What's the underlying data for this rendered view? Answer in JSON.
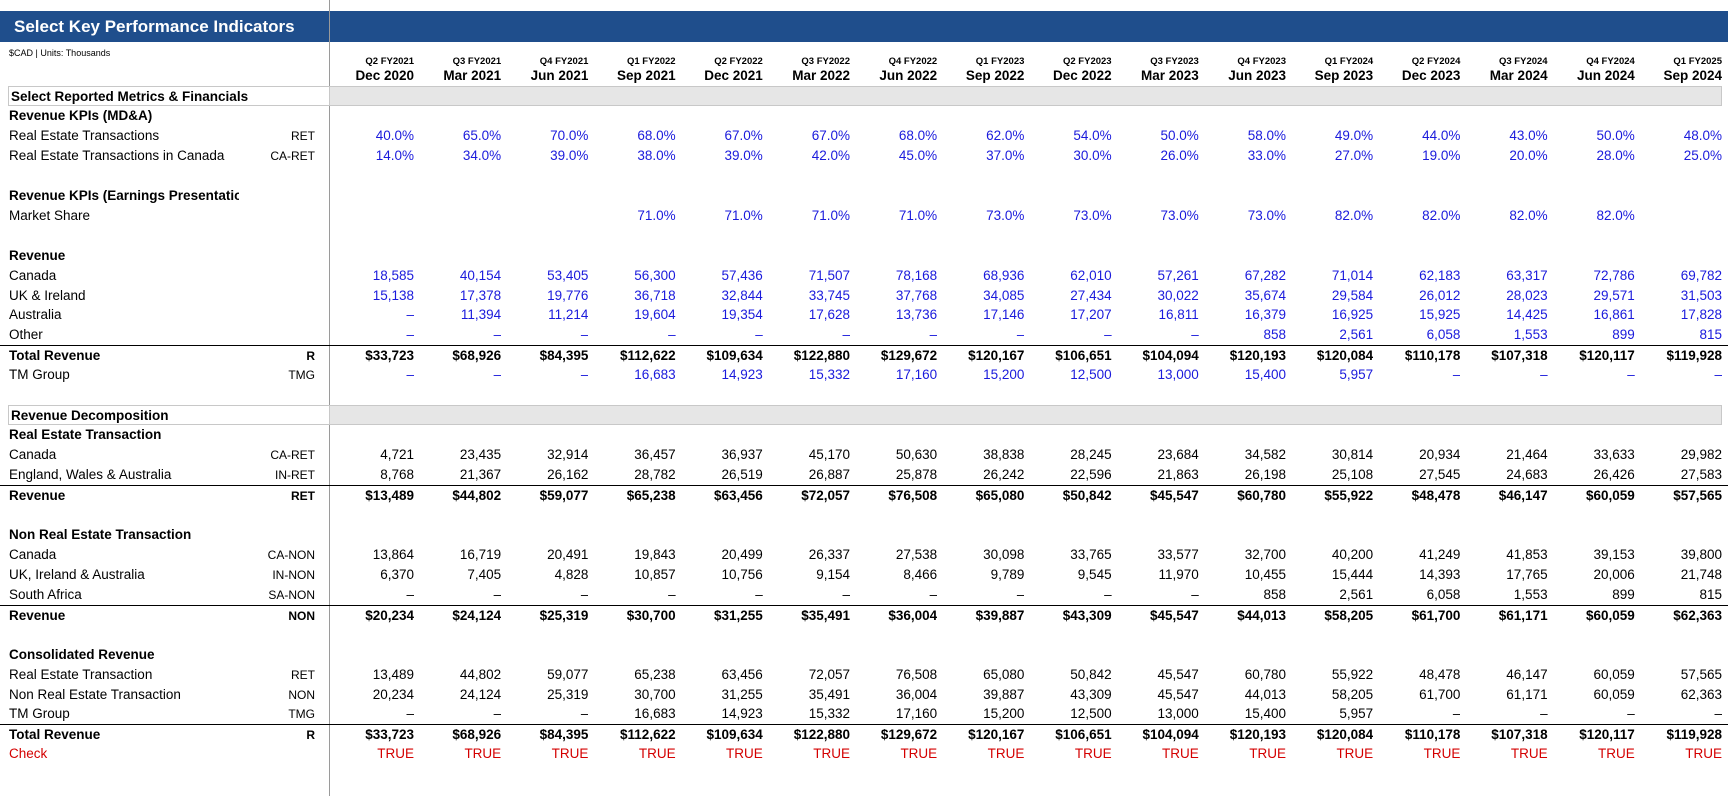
{
  "title": "Select Key Performance Indicators",
  "units": "$CAD | Units: Thousands",
  "colors": {
    "header_bg": "#1f4e8c",
    "input_blue": "#1a1adc",
    "check_red": "#d40000",
    "section_bg": "#e6e6e6"
  },
  "fiscal_quarters": [
    "Q2 FY2021",
    "Q3 FY2021",
    "Q4 FY2021",
    "Q1 FY2022",
    "Q2 FY2022",
    "Q3 FY2022",
    "Q4 FY2022",
    "Q1 FY2023",
    "Q2 FY2023",
    "Q3 FY2023",
    "Q4 FY2023",
    "Q1 FY2024",
    "Q2 FY2024",
    "Q3 FY2024",
    "Q4 FY2024",
    "Q1 FY2025"
  ],
  "period_dates": [
    "Dec 2020",
    "Mar 2021",
    "Jun 2021",
    "Sep 2021",
    "Dec 2021",
    "Mar 2022",
    "Jun 2022",
    "Sep 2022",
    "Dec 2022",
    "Mar 2023",
    "Jun 2023",
    "Sep 2023",
    "Dec 2023",
    "Mar 2024",
    "Jun 2024",
    "Sep 2024"
  ],
  "rows": [
    {
      "type": "section",
      "label": "Select Reported Metrics & Financials"
    },
    {
      "type": "heading",
      "label": "Revenue KPIs (MD&A)"
    },
    {
      "type": "data",
      "style": "blue",
      "label": "Real Estate Transactions",
      "code": "RET",
      "values": [
        "40.0%",
        "65.0%",
        "70.0%",
        "68.0%",
        "67.0%",
        "67.0%",
        "68.0%",
        "62.0%",
        "54.0%",
        "50.0%",
        "58.0%",
        "49.0%",
        "44.0%",
        "43.0%",
        "50.0%",
        "48.0%"
      ]
    },
    {
      "type": "data",
      "style": "blue",
      "label": "Real Estate Transactions in Canada",
      "code": "CA-RET",
      "values": [
        "14.0%",
        "34.0%",
        "39.0%",
        "38.0%",
        "39.0%",
        "42.0%",
        "45.0%",
        "37.0%",
        "30.0%",
        "26.0%",
        "33.0%",
        "27.0%",
        "19.0%",
        "20.0%",
        "28.0%",
        "25.0%"
      ]
    },
    {
      "type": "blank"
    },
    {
      "type": "heading",
      "label": "Revenue KPIs (Earnings Presentation)"
    },
    {
      "type": "data",
      "style": "blue",
      "label": "Market Share",
      "code": "",
      "values": [
        "",
        "",
        "",
        "71.0%",
        "71.0%",
        "71.0%",
        "71.0%",
        "73.0%",
        "73.0%",
        "73.0%",
        "73.0%",
        "82.0%",
        "82.0%",
        "82.0%",
        "82.0%",
        ""
      ]
    },
    {
      "type": "blank"
    },
    {
      "type": "heading",
      "label": "Revenue"
    },
    {
      "type": "data",
      "style": "blue",
      "label": "Canada",
      "code": "",
      "values": [
        "18,585",
        "40,154",
        "53,405",
        "56,300",
        "57,436",
        "71,507",
        "78,168",
        "68,936",
        "62,010",
        "57,261",
        "67,282",
        "71,014",
        "62,183",
        "63,317",
        "72,786",
        "69,782"
      ]
    },
    {
      "type": "data",
      "style": "blue",
      "label": "UK & Ireland",
      "code": "",
      "values": [
        "15,138",
        "17,378",
        "19,776",
        "36,718",
        "32,844",
        "33,745",
        "37,768",
        "34,085",
        "27,434",
        "30,022",
        "35,674",
        "29,584",
        "26,012",
        "28,023",
        "29,571",
        "31,503"
      ]
    },
    {
      "type": "data",
      "style": "blue",
      "label": "Australia",
      "code": "",
      "values": [
        "–",
        "11,394",
        "11,214",
        "19,604",
        "19,354",
        "17,628",
        "13,736",
        "17,146",
        "17,207",
        "16,811",
        "16,379",
        "16,925",
        "15,925",
        "14,425",
        "16,861",
        "17,828"
      ]
    },
    {
      "type": "data",
      "style": "blue",
      "label": "Other",
      "code": "",
      "values": [
        "–",
        "–",
        "–",
        "–",
        "–",
        "–",
        "–",
        "–",
        "–",
        "–",
        "858",
        "2,561",
        "6,058",
        "1,553",
        "899",
        "815"
      ]
    },
    {
      "type": "data",
      "style": "total",
      "label": "Total Revenue",
      "code": "R",
      "values": [
        "$33,723",
        "$68,926",
        "$84,395",
        "$112,622",
        "$109,634",
        "$122,880",
        "$129,672",
        "$120,167",
        "$106,651",
        "$104,094",
        "$120,193",
        "$120,084",
        "$110,178",
        "$107,318",
        "$120,117",
        "$119,928"
      ]
    },
    {
      "type": "data",
      "style": "blue",
      "label": "TM Group",
      "code": "TMG",
      "values": [
        "–",
        "–",
        "–",
        "16,683",
        "14,923",
        "15,332",
        "17,160",
        "15,200",
        "12,500",
        "13,000",
        "15,400",
        "5,957",
        "–",
        "–",
        "–",
        "–"
      ]
    },
    {
      "type": "blank"
    },
    {
      "type": "section",
      "label": "Revenue Decomposition"
    },
    {
      "type": "heading",
      "label": "Real Estate Transaction"
    },
    {
      "type": "data",
      "style": "black",
      "label": "Canada",
      "code": "CA-RET",
      "values": [
        "4,721",
        "23,435",
        "32,914",
        "36,457",
        "36,937",
        "45,170",
        "50,630",
        "38,838",
        "28,245",
        "23,684",
        "34,582",
        "30,814",
        "20,934",
        "21,464",
        "33,633",
        "29,982"
      ]
    },
    {
      "type": "data",
      "style": "black",
      "label": "England, Wales & Australia",
      "code": "IN-RET",
      "values": [
        "8,768",
        "21,367",
        "26,162",
        "28,782",
        "26,519",
        "26,887",
        "25,878",
        "26,242",
        "22,596",
        "21,863",
        "26,198",
        "25,108",
        "27,545",
        "24,683",
        "26,426",
        "27,583"
      ]
    },
    {
      "type": "data",
      "style": "total",
      "label": "Revenue",
      "code": "RET",
      "values": [
        "$13,489",
        "$44,802",
        "$59,077",
        "$65,238",
        "$63,456",
        "$72,057",
        "$76,508",
        "$65,080",
        "$50,842",
        "$45,547",
        "$60,780",
        "$55,922",
        "$48,478",
        "$46,147",
        "$60,059",
        "$57,565"
      ]
    },
    {
      "type": "blank"
    },
    {
      "type": "heading",
      "label": "Non Real Estate Transaction"
    },
    {
      "type": "data",
      "style": "black",
      "label": "Canada",
      "code": "CA-NON",
      "values": [
        "13,864",
        "16,719",
        "20,491",
        "19,843",
        "20,499",
        "26,337",
        "27,538",
        "30,098",
        "33,765",
        "33,577",
        "32,700",
        "40,200",
        "41,249",
        "41,853",
        "39,153",
        "39,800"
      ]
    },
    {
      "type": "data",
      "style": "black",
      "label": "UK, Ireland & Australia",
      "code": "IN-NON",
      "values": [
        "6,370",
        "7,405",
        "4,828",
        "10,857",
        "10,756",
        "9,154",
        "8,466",
        "9,789",
        "9,545",
        "11,970",
        "10,455",
        "15,444",
        "14,393",
        "17,765",
        "20,006",
        "21,748"
      ]
    },
    {
      "type": "data",
      "style": "black",
      "label": "South Africa",
      "code": "SA-NON",
      "values": [
        "–",
        "–",
        "–",
        "–",
        "–",
        "–",
        "–",
        "–",
        "–",
        "–",
        "858",
        "2,561",
        "6,058",
        "1,553",
        "899",
        "815"
      ]
    },
    {
      "type": "data",
      "style": "total",
      "label": "Revenue",
      "code": "NON",
      "values": [
        "$20,234",
        "$24,124",
        "$25,319",
        "$30,700",
        "$31,255",
        "$35,491",
        "$36,004",
        "$39,887",
        "$43,309",
        "$45,547",
        "$44,013",
        "$58,205",
        "$61,700",
        "$61,171",
        "$60,059",
        "$62,363"
      ]
    },
    {
      "type": "blank"
    },
    {
      "type": "heading",
      "label": "Consolidated Revenue"
    },
    {
      "type": "data",
      "style": "black",
      "label": "Real Estate Transaction",
      "code": "RET",
      "values": [
        "13,489",
        "44,802",
        "59,077",
        "65,238",
        "63,456",
        "72,057",
        "76,508",
        "65,080",
        "50,842",
        "45,547",
        "60,780",
        "55,922",
        "48,478",
        "46,147",
        "60,059",
        "57,565"
      ]
    },
    {
      "type": "data",
      "style": "black",
      "label": "Non Real Estate Transaction",
      "code": "NON",
      "values": [
        "20,234",
        "24,124",
        "25,319",
        "30,700",
        "31,255",
        "35,491",
        "36,004",
        "39,887",
        "43,309",
        "45,547",
        "44,013",
        "58,205",
        "61,700",
        "61,171",
        "60,059",
        "62,363"
      ]
    },
    {
      "type": "data",
      "style": "black",
      "label": "TM Group",
      "code": "TMG",
      "values": [
        "–",
        "–",
        "–",
        "16,683",
        "14,923",
        "15,332",
        "17,160",
        "15,200",
        "12,500",
        "13,000",
        "15,400",
        "5,957",
        "–",
        "–",
        "–",
        "–"
      ]
    },
    {
      "type": "data",
      "style": "total",
      "label": "Total Revenue",
      "code": "R",
      "values": [
        "$33,723",
        "$68,926",
        "$84,395",
        "$112,622",
        "$109,634",
        "$122,880",
        "$129,672",
        "$120,167",
        "$106,651",
        "$104,094",
        "$120,193",
        "$120,084",
        "$110,178",
        "$107,318",
        "$120,117",
        "$119,928"
      ]
    },
    {
      "type": "data",
      "style": "check",
      "label": "Check",
      "code": "",
      "values": [
        "TRUE",
        "TRUE",
        "TRUE",
        "TRUE",
        "TRUE",
        "TRUE",
        "TRUE",
        "TRUE",
        "TRUE",
        "TRUE",
        "TRUE",
        "TRUE",
        "TRUE",
        "TRUE",
        "TRUE",
        "TRUE"
      ]
    }
  ]
}
